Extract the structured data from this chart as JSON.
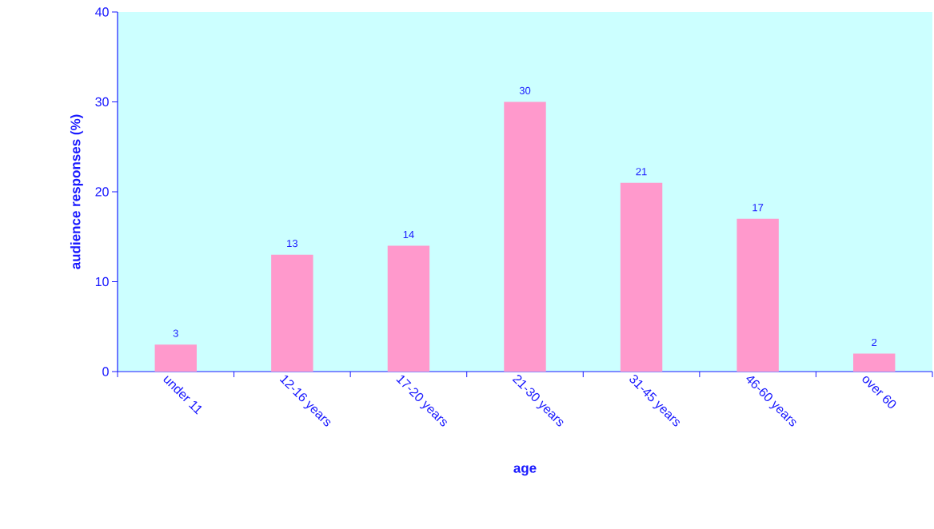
{
  "chart_data": {
    "type": "bar",
    "xlabel": "age",
    "ylabel": "audience responses (%)",
    "categories": [
      "under 11",
      "12-16 years",
      "17-20 years",
      "21-30 years",
      "31-45 years",
      "46-60 years",
      "over 60"
    ],
    "values": [
      3,
      13,
      14,
      30,
      21,
      17,
      2
    ],
    "color": "#ff99cc",
    "ylim": [
      0,
      40
    ],
    "yticks": [
      0,
      10,
      20,
      30,
      40
    ],
    "data_labels": true
  }
}
